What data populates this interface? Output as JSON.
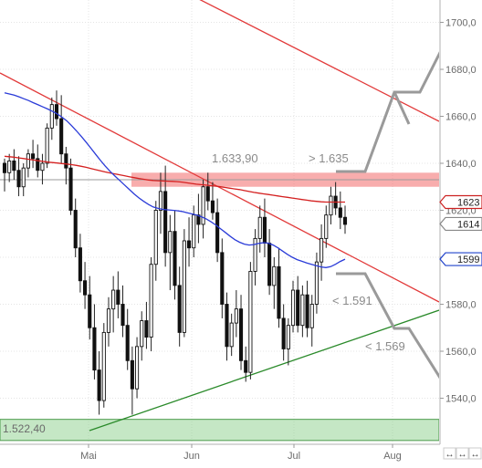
{
  "chart_data": {
    "type": "candlestick",
    "yaxis": {
      "ticks": [
        "1700,0",
        "1680,0",
        "1660,0",
        "1640,0",
        "1620,0",
        "1600,0",
        "1580,0",
        "1560,0",
        "1540,0"
      ],
      "range": [
        1522,
        1710
      ]
    },
    "xaxis": {
      "month_labels": [
        "Mai",
        "Jun",
        "Jul",
        "Aug"
      ]
    },
    "price_tags": [
      {
        "label": "1623",
        "value": 1623.5,
        "color": "#cc2222"
      },
      {
        "label": "1614",
        "value": 1614.2,
        "color": "#888888"
      },
      {
        "label": "1599",
        "value": 1599.2,
        "color": "#2244cc"
      }
    ],
    "annotations": {
      "reference_price": "1.633,90",
      "target_up": "> 1.635",
      "support_1": "< 1.591",
      "support_2": "< 1.569",
      "low_label": "1.522,40"
    },
    "zones": [
      {
        "name": "resistance",
        "from": 1630,
        "to": 1636,
        "color": "#f26a6a"
      },
      {
        "name": "support",
        "from": 1522,
        "to": 1531,
        "color": "#8ccf8c"
      }
    ],
    "scroll_arrows": [
      "↔",
      "↔",
      "↔"
    ],
    "candles": [
      {
        "o": 1640,
        "h": 1642,
        "l": 1628,
        "c": 1636
      },
      {
        "o": 1636,
        "h": 1644,
        "l": 1632,
        "c": 1641
      },
      {
        "o": 1641,
        "h": 1646,
        "l": 1633,
        "c": 1637
      },
      {
        "o": 1637,
        "h": 1643,
        "l": 1626,
        "c": 1630
      },
      {
        "o": 1630,
        "h": 1640,
        "l": 1626,
        "c": 1638
      },
      {
        "o": 1638,
        "h": 1646,
        "l": 1634,
        "c": 1644
      },
      {
        "o": 1644,
        "h": 1650,
        "l": 1638,
        "c": 1642
      },
      {
        "o": 1642,
        "h": 1648,
        "l": 1634,
        "c": 1637
      },
      {
        "o": 1637,
        "h": 1644,
        "l": 1631,
        "c": 1640
      },
      {
        "o": 1640,
        "h": 1657,
        "l": 1638,
        "c": 1655
      },
      {
        "o": 1655,
        "h": 1668,
        "l": 1650,
        "c": 1665
      },
      {
        "o": 1665,
        "h": 1671,
        "l": 1656,
        "c": 1659
      },
      {
        "o": 1659,
        "h": 1669,
        "l": 1640,
        "c": 1644
      },
      {
        "o": 1644,
        "h": 1647,
        "l": 1631,
        "c": 1638
      },
      {
        "o": 1638,
        "h": 1642,
        "l": 1618,
        "c": 1620
      },
      {
        "o": 1620,
        "h": 1625,
        "l": 1600,
        "c": 1604
      },
      {
        "o": 1604,
        "h": 1610,
        "l": 1585,
        "c": 1590
      },
      {
        "o": 1590,
        "h": 1598,
        "l": 1578,
        "c": 1584
      },
      {
        "o": 1584,
        "h": 1592,
        "l": 1565,
        "c": 1570
      },
      {
        "o": 1570,
        "h": 1580,
        "l": 1548,
        "c": 1552
      },
      {
        "o": 1552,
        "h": 1560,
        "l": 1533,
        "c": 1539
      },
      {
        "o": 1539,
        "h": 1572,
        "l": 1536,
        "c": 1568
      },
      {
        "o": 1568,
        "h": 1583,
        "l": 1562,
        "c": 1578
      },
      {
        "o": 1578,
        "h": 1592,
        "l": 1568,
        "c": 1586
      },
      {
        "o": 1586,
        "h": 1594,
        "l": 1574,
        "c": 1580
      },
      {
        "o": 1580,
        "h": 1588,
        "l": 1566,
        "c": 1571
      },
      {
        "o": 1571,
        "h": 1578,
        "l": 1552,
        "c": 1556
      },
      {
        "o": 1556,
        "h": 1562,
        "l": 1533,
        "c": 1544
      },
      {
        "o": 1544,
        "h": 1566,
        "l": 1540,
        "c": 1562
      },
      {
        "o": 1562,
        "h": 1577,
        "l": 1556,
        "c": 1573
      },
      {
        "o": 1573,
        "h": 1581,
        "l": 1561,
        "c": 1566
      },
      {
        "o": 1566,
        "h": 1600,
        "l": 1560,
        "c": 1597
      },
      {
        "o": 1597,
        "h": 1624,
        "l": 1590,
        "c": 1620
      },
      {
        "o": 1620,
        "h": 1636,
        "l": 1610,
        "c": 1628
      },
      {
        "o": 1628,
        "h": 1639,
        "l": 1596,
        "c": 1602
      },
      {
        "o": 1602,
        "h": 1618,
        "l": 1586,
        "c": 1611
      },
      {
        "o": 1611,
        "h": 1620,
        "l": 1582,
        "c": 1588
      },
      {
        "o": 1588,
        "h": 1596,
        "l": 1562,
        "c": 1568
      },
      {
        "o": 1568,
        "h": 1612,
        "l": 1566,
        "c": 1607
      },
      {
        "o": 1607,
        "h": 1617,
        "l": 1596,
        "c": 1604
      },
      {
        "o": 1604,
        "h": 1622,
        "l": 1600,
        "c": 1618
      },
      {
        "o": 1618,
        "h": 1627,
        "l": 1606,
        "c": 1614
      },
      {
        "o": 1614,
        "h": 1633,
        "l": 1608,
        "c": 1630
      },
      {
        "o": 1630,
        "h": 1636,
        "l": 1620,
        "c": 1624
      },
      {
        "o": 1624,
        "h": 1632,
        "l": 1616,
        "c": 1619
      },
      {
        "o": 1619,
        "h": 1625,
        "l": 1598,
        "c": 1602
      },
      {
        "o": 1602,
        "h": 1608,
        "l": 1574,
        "c": 1580
      },
      {
        "o": 1580,
        "h": 1585,
        "l": 1556,
        "c": 1562
      },
      {
        "o": 1562,
        "h": 1576,
        "l": 1558,
        "c": 1572
      },
      {
        "o": 1572,
        "h": 1586,
        "l": 1566,
        "c": 1578
      },
      {
        "o": 1578,
        "h": 1584,
        "l": 1552,
        "c": 1556
      },
      {
        "o": 1556,
        "h": 1562,
        "l": 1547,
        "c": 1551
      },
      {
        "o": 1551,
        "h": 1598,
        "l": 1548,
        "c": 1594
      },
      {
        "o": 1594,
        "h": 1612,
        "l": 1588,
        "c": 1608
      },
      {
        "o": 1608,
        "h": 1622,
        "l": 1602,
        "c": 1617
      },
      {
        "o": 1617,
        "h": 1625,
        "l": 1600,
        "c": 1606
      },
      {
        "o": 1606,
        "h": 1612,
        "l": 1584,
        "c": 1588
      },
      {
        "o": 1588,
        "h": 1600,
        "l": 1578,
        "c": 1596
      },
      {
        "o": 1596,
        "h": 1604,
        "l": 1570,
        "c": 1574
      },
      {
        "o": 1574,
        "h": 1580,
        "l": 1556,
        "c": 1561
      },
      {
        "o": 1561,
        "h": 1574,
        "l": 1554,
        "c": 1571
      },
      {
        "o": 1571,
        "h": 1590,
        "l": 1568,
        "c": 1586
      },
      {
        "o": 1586,
        "h": 1592,
        "l": 1568,
        "c": 1571
      },
      {
        "o": 1571,
        "h": 1588,
        "l": 1566,
        "c": 1584
      },
      {
        "o": 1584,
        "h": 1590,
        "l": 1566,
        "c": 1570
      },
      {
        "o": 1570,
        "h": 1584,
        "l": 1562,
        "c": 1580
      },
      {
        "o": 1580,
        "h": 1602,
        "l": 1576,
        "c": 1598
      },
      {
        "o": 1598,
        "h": 1614,
        "l": 1590,
        "c": 1608
      },
      {
        "o": 1608,
        "h": 1622,
        "l": 1604,
        "c": 1618
      },
      {
        "o": 1618,
        "h": 1630,
        "l": 1614,
        "c": 1626
      },
      {
        "o": 1626,
        "h": 1632,
        "l": 1618,
        "c": 1621
      },
      {
        "o": 1621,
        "h": 1628,
        "l": 1612,
        "c": 1617
      },
      {
        "o": 1617,
        "h": 1622,
        "l": 1610,
        "c": 1614
      }
    ],
    "sma_red": [
      1643,
      1642.8,
      1642.6,
      1642.3,
      1642,
      1641.7,
      1641.4,
      1641.1,
      1640.8,
      1640.5,
      1640.3,
      1640.1,
      1639.9,
      1639.7,
      1639.4,
      1639.1,
      1638.7,
      1638.3,
      1637.8,
      1637.3,
      1636.8,
      1636.3,
      1635.9,
      1635.5,
      1635.1,
      1634.7,
      1634.3,
      1633.9,
      1633.5,
      1633.2,
      1632.9,
      1632.7,
      1632.6,
      1632.5,
      1632.4,
      1632.3,
      1632.2,
      1632.0,
      1631.7,
      1631.4,
      1631.1,
      1630.9,
      1630.7,
      1630.5,
      1630.3,
      1630.0,
      1629.7,
      1629.4,
      1629.1,
      1628.8,
      1628.4,
      1628.0,
      1627.6,
      1627.3,
      1627.0,
      1626.7,
      1626.4,
      1626.1,
      1625.8,
      1625.5,
      1625.2,
      1624.9,
      1624.6,
      1624.3,
      1624.0,
      1623.8,
      1623.6,
      1623.5,
      1623.5,
      1623.5,
      1623.5,
      1623.5
    ],
    "sma_blue": [
      1670,
      1669.5,
      1669,
      1668.3,
      1667.5,
      1666.7,
      1665.8,
      1664.9,
      1664,
      1663.1,
      1662.1,
      1661,
      1659.6,
      1658,
      1656,
      1653.8,
      1651.4,
      1649,
      1646.4,
      1643.8,
      1641.2,
      1638.8,
      1636.6,
      1634.6,
      1632.7,
      1630.8,
      1628.9,
      1627.0,
      1625.3,
      1623.8,
      1622.5,
      1621.4,
      1620.8,
      1620.4,
      1620.2,
      1620.0,
      1619.8,
      1619.5,
      1619.0,
      1618.5,
      1618.0,
      1617.3,
      1616.4,
      1615.2,
      1613.8,
      1612.2,
      1610.6,
      1609.0,
      1607.5,
      1606.4,
      1605.6,
      1605.2,
      1605.4,
      1605.9,
      1606.2,
      1606.0,
      1605.2,
      1604.0,
      1602.6,
      1601.2,
      1600.0,
      1599.0,
      1598.3,
      1597.6,
      1597.0,
      1596.4,
      1595.9,
      1595.6,
      1596.0,
      1597.0,
      1598.2,
      1599.2
    ]
  }
}
